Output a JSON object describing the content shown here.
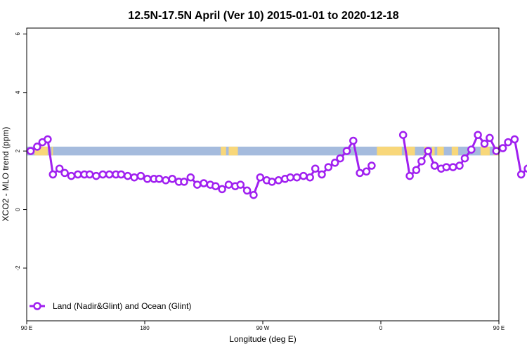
{
  "chart_data": {
    "type": "line",
    "title": "12.5N-17.5N April (Ver 10)   2015-01-01 to 2020-12-18",
    "xlabel": "Longitude (deg E)",
    "ylabel": "XCO2 - MLO trend (ppm)",
    "xlim": [
      90,
      450
    ],
    "ylim": [
      -3.8,
      6.2
    ],
    "x_ticks": [
      {
        "value": 90,
        "label": "90 E"
      },
      {
        "value": 180,
        "label": "180"
      },
      {
        "value": 270,
        "label": "90 W"
      },
      {
        "value": 360,
        "label": "0"
      },
      {
        "value": 450,
        "label": "90 E"
      },
      {
        "value": 540,
        "label": "180"
      }
    ],
    "y_ticks": [
      {
        "value": -2,
        "label": "-2"
      },
      {
        "value": 0,
        "label": "0"
      },
      {
        "value": 2,
        "label": "2"
      },
      {
        "value": 4,
        "label": "4"
      },
      {
        "value": 6,
        "label": "6"
      }
    ],
    "surface_band": {
      "y_range": [
        1.85,
        2.15
      ],
      "ocean_color": "#a5bbdd",
      "land_color": "#f8d77a",
      "land_segments": [
        [
          96,
          106
        ],
        [
          109,
          110
        ],
        [
          238,
          242
        ],
        [
          244,
          251
        ],
        [
          357,
          376
        ],
        [
          378,
          386
        ],
        [
          393,
          395
        ],
        [
          399,
          401
        ],
        [
          403,
          408
        ],
        [
          414,
          419
        ],
        [
          436,
          443
        ],
        [
          446,
          452
        ],
        [
          457,
          461
        ],
        [
          472,
          473
        ]
      ]
    },
    "series": [
      {
        "name": "Land (Nadir&Glint) and Ocean (Glint)",
        "color": "#a020f0",
        "points": [
          [
            [
              93,
              2.0
            ],
            [
              98,
              2.15
            ],
            [
              102,
              2.3
            ],
            [
              106,
              2.4
            ],
            [
              110,
              1.2
            ],
            [
              115,
              1.4
            ],
            [
              119,
              1.25
            ],
            [
              124,
              1.15
            ],
            [
              129,
              1.2
            ],
            [
              134,
              1.2
            ],
            [
              138,
              1.2
            ],
            [
              143,
              1.15
            ],
            [
              148,
              1.2
            ],
            [
              153,
              1.2
            ],
            [
              158,
              1.2
            ],
            [
              162,
              1.2
            ],
            [
              167,
              1.15
            ],
            [
              172,
              1.1
            ],
            [
              177,
              1.15
            ],
            [
              182,
              1.05
            ],
            [
              187,
              1.05
            ],
            [
              191,
              1.05
            ],
            [
              196,
              1.0
            ],
            [
              201,
              1.05
            ],
            [
              206,
              0.95
            ],
            [
              210,
              0.95
            ],
            [
              215,
              1.1
            ],
            [
              220,
              0.85
            ],
            [
              225,
              0.9
            ],
            [
              230,
              0.85
            ],
            [
              234,
              0.8
            ],
            [
              239,
              0.7
            ],
            [
              244,
              0.85
            ],
            [
              249,
              0.8
            ],
            [
              253,
              0.85
            ],
            [
              258,
              0.65
            ],
            [
              263,
              0.5
            ],
            [
              268,
              1.1
            ],
            [
              273,
              1.0
            ],
            [
              277,
              0.95
            ],
            [
              282,
              1.0
            ],
            [
              287,
              1.05
            ],
            [
              291,
              1.1
            ],
            [
              296,
              1.1
            ],
            [
              301,
              1.15
            ],
            [
              306,
              1.1
            ],
            [
              310,
              1.4
            ],
            [
              315,
              1.2
            ],
            [
              320,
              1.45
            ],
            [
              325,
              1.6
            ],
            [
              329,
              1.75
            ],
            [
              334,
              2.0
            ],
            [
              339,
              2.35
            ],
            [
              344,
              1.25
            ],
            [
              349,
              1.3
            ],
            [
              353,
              1.5
            ]
          ],
          [
            [
              377,
              2.55
            ],
            [
              382,
              1.15
            ],
            [
              387,
              1.35
            ],
            [
              391,
              1.65
            ],
            [
              396,
              2.0
            ],
            [
              401,
              1.5
            ],
            [
              406,
              1.4
            ],
            [
              410,
              1.45
            ],
            [
              415,
              1.45
            ],
            [
              420,
              1.5
            ],
            [
              424,
              1.75
            ],
            [
              429,
              2.05
            ],
            [
              434,
              2.55
            ],
            [
              439,
              2.25
            ],
            [
              443,
              2.45
            ],
            [
              448,
              2.0
            ],
            [
              453,
              2.1
            ],
            [
              457,
              2.3
            ],
            [
              462,
              2.4
            ],
            [
              467,
              1.2
            ],
            [
              472,
              1.4
            ],
            [
              476,
              1.25
            ],
            [
              481,
              1.15
            ],
            [
              486,
              1.2
            ],
            [
              490,
              1.2
            ],
            [
              495,
              1.2
            ],
            [
              500,
              1.15
            ],
            [
              505,
              1.2
            ],
            [
              509,
              1.2
            ],
            [
              514,
              1.2
            ],
            [
              519,
              1.15
            ],
            [
              524,
              1.15
            ],
            [
              528,
              1.05
            ]
          ]
        ]
      }
    ],
    "legend": {
      "position": "bottom-left"
    }
  }
}
